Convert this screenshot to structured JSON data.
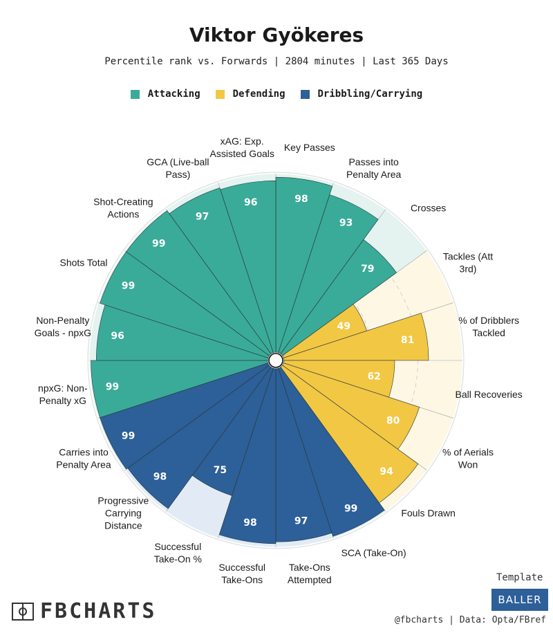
{
  "title": "Viktor Gyökeres",
  "subtitle": "Percentile rank vs. Forwards | 2804 minutes | Last 365 Days",
  "legend": [
    {
      "label": "Attacking",
      "color": "#3aab99"
    },
    {
      "label": "Defending",
      "color": "#f2c744"
    },
    {
      "label": "Dribbling/Carrying",
      "color": "#2d5f99"
    }
  ],
  "chart_data": {
    "type": "pie",
    "subtype": "polar-bar",
    "value_range": [
      0,
      100
    ],
    "background_colors": {
      "Attacking": "#e4f3f0",
      "Defending": "#fdf7e4",
      "Dribbling/Carrying": "#e2ebf5"
    },
    "slices": [
      {
        "label": "Key Passes",
        "value": 98,
        "group": "Attacking"
      },
      {
        "label": "Passes into\nPenalty Area",
        "value": 93,
        "group": "Attacking"
      },
      {
        "label": "Crosses",
        "value": 79,
        "group": "Attacking"
      },
      {
        "label": "Tackles (Att\n3rd)",
        "value": 49,
        "group": "Defending"
      },
      {
        "label": "% of Dribblers\nTackled",
        "value": 81,
        "group": "Defending"
      },
      {
        "label": "Ball Recoveries",
        "value": 62,
        "group": "Defending"
      },
      {
        "label": "% of Aerials\nWon",
        "value": 80,
        "group": "Defending"
      },
      {
        "label": "Fouls Drawn",
        "value": 94,
        "group": "Defending"
      },
      {
        "label": "SCA (Take-On)",
        "value": 99,
        "group": "Dribbling/Carrying"
      },
      {
        "label": "Take-Ons\nAttempted",
        "value": 97,
        "group": "Dribbling/Carrying"
      },
      {
        "label": "Successful\nTake-Ons",
        "value": 98,
        "group": "Dribbling/Carrying"
      },
      {
        "label": "Successful\nTake-On %",
        "value": 75,
        "group": "Dribbling/Carrying"
      },
      {
        "label": "Progressive\nCarrying\nDistance",
        "value": 98,
        "group": "Dribbling/Carrying"
      },
      {
        "label": "Carries into\nPenalty Area",
        "value": 99,
        "group": "Dribbling/Carrying"
      },
      {
        "label": "npxG: Non-\nPenalty xG",
        "value": 99,
        "group": "Attacking"
      },
      {
        "label": "Non-Penalty\nGoals - npxG",
        "value": 96,
        "group": "Attacking"
      },
      {
        "label": "Shots Total",
        "value": 99,
        "group": "Attacking"
      },
      {
        "label": "Shot-Creating\nActions",
        "value": 99,
        "group": "Attacking"
      },
      {
        "label": "GCA (Live-ball\nPass)",
        "value": 97,
        "group": "Attacking"
      },
      {
        "label": "xAG: Exp.\nAssisted Goals",
        "value": 96,
        "group": "Attacking"
      }
    ]
  },
  "footer": {
    "logo_text": "FBCHARTS",
    "template_label": "Template",
    "template_badge": "BALLER",
    "source": "@fbcharts | Data: Opta/FBref"
  }
}
